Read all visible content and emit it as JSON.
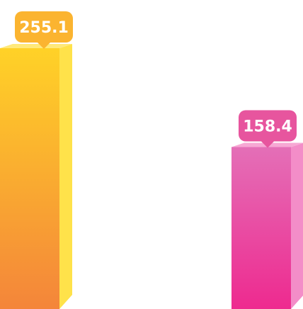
{
  "chart_data": {
    "type": "bar",
    "categories": [
      "",
      ""
    ],
    "values": [
      255.1,
      158.4
    ],
    "value_labels": [
      "255.1",
      "158.4"
    ],
    "ylim": [
      0,
      300
    ],
    "grid": false,
    "legend": "none",
    "colors": [
      {
        "top": "#FFD227",
        "bottom": "#F4853A",
        "side": "#FFE24A",
        "cap": "#FFE97A",
        "label": "#FBB430"
      },
      {
        "top": "#E46FB7",
        "bottom": "#EE2A8F",
        "side": "#F38DC8",
        "cap": "#F7A8D4",
        "label": "#E7559E"
      }
    ]
  }
}
